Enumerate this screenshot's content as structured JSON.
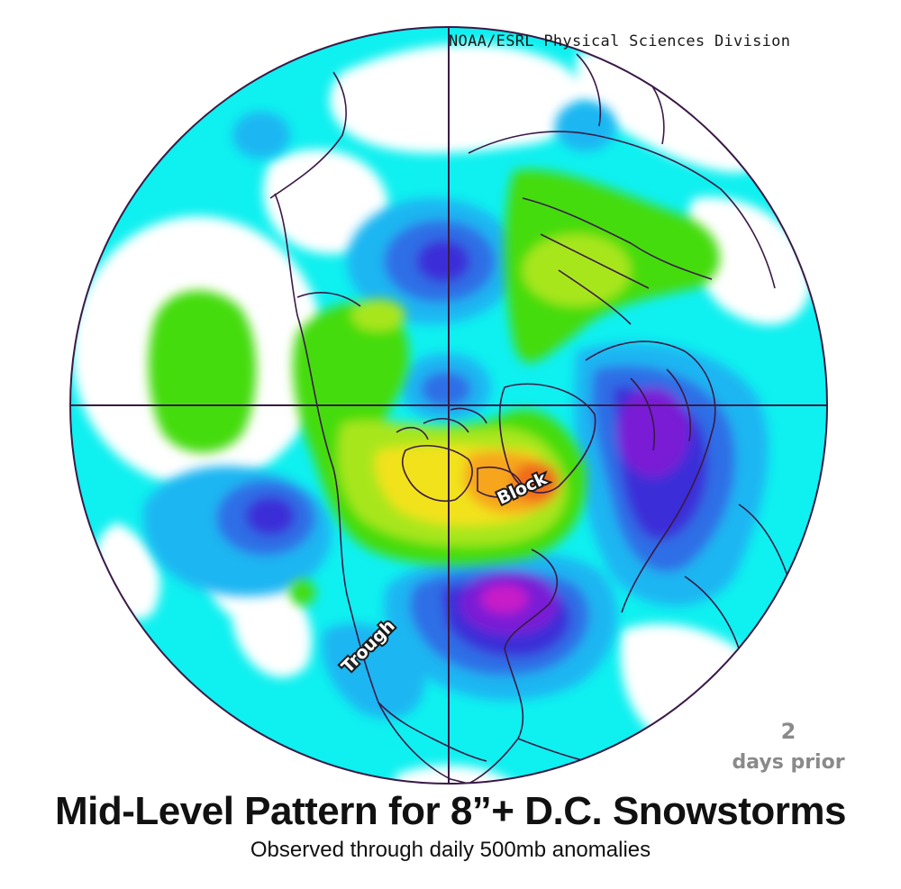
{
  "credit": "NOAA/ESRL Physical Sciences Division",
  "annotations": {
    "block": "Block",
    "trough": "Trough"
  },
  "lead_time": {
    "number": "2",
    "label": "days prior"
  },
  "title": "Mid-Level Pattern for 8”+ D.C. Snowstorms",
  "subtitle": "Observed through daily 500mb anomalies",
  "colors": {
    "background_anomaly": "#0ff0f0",
    "neutral": "#ffffff",
    "light_blue": "#1fb6f2",
    "blue": "#2f6ee6",
    "deep_blue": "#3b2fd8",
    "violet": "#7a1fd6",
    "magenta": "#c81ec8",
    "green": "#45dc11",
    "yellow_green": "#a8e61a",
    "yellow": "#f2e21a",
    "orange": "#f6a51e",
    "red_orange": "#f06a1a",
    "coastline": "#3a1a46"
  }
}
